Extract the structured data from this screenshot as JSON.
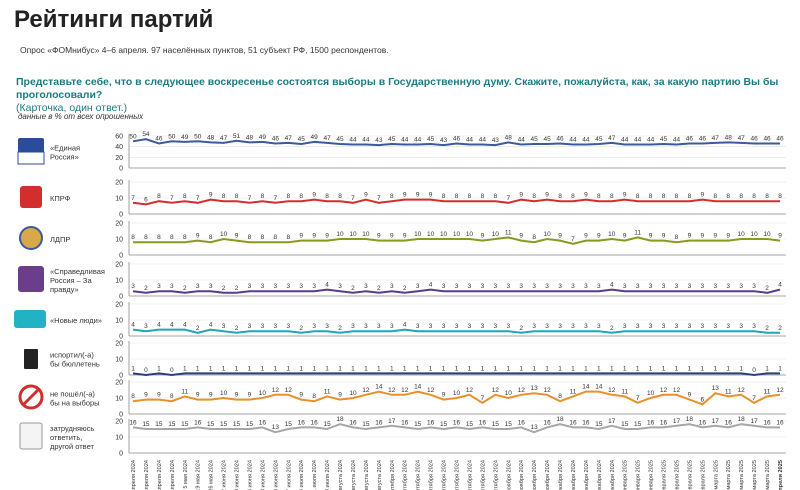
{
  "header": {
    "title": "Рейтинги партий",
    "subtitle": "Опрос «ФОМнибус» 4–6 апреля. 97 населённых пунктов, 51 субъект РФ, 1500 респондентов.",
    "question": "Представьте себе, что в следующее воскресенье состоятся выборы в Государственную думу. Скажите, пожалуйста, как, за какую партию Вы бы проголосовали?",
    "question_note": "(Карточка, один ответ.)",
    "basis": "данные в % от всех опрошенных"
  },
  "chart_data": {
    "type": "line",
    "title": "Рейтинги партий",
    "x": [
      "7 апреля 2024",
      "14 апреля 2024",
      "21 апреля 2024",
      "28 апреля 2024",
      "5 мая 2024",
      "19 мая 2024",
      "26 мая 2024",
      "2 июня 2024",
      "9 июня 2024",
      "16 июня 2024",
      "23 июня 2024",
      "30 июня 2024",
      "7 июля 2024",
      "14 июля 2024",
      "21 июля 2024",
      "28 июля 2024",
      "4 августа 2024",
      "11 августа 2024",
      "18 августа 2024",
      "25 августа 2024",
      "1 сентября 2024",
      "8 сентября 2024",
      "15 сентября 2024",
      "22 сентября 2024",
      "29 сентября 2024",
      "6 октября 2024",
      "13 октября 2024",
      "20 октября 2024",
      "27 октября 2024",
      "3 ноября 2024",
      "10 ноября 2024",
      "17 ноября 2024",
      "24 ноября 2024",
      "1 декабря 2024",
      "8 декабря 2024",
      "15 декабря 2024",
      "22 декабря 2024",
      "29 декабря 2024",
      "12 января 2025",
      "19 января 2025",
      "26 января 2025",
      "2 февраля 2025",
      "9 февраля 2025",
      "16 февраля 2025",
      "23 февраля 2025",
      "2 марта 2025",
      "9 марта 2025",
      "16 марта 2025",
      "23 марта 2025",
      "30 марта 2025",
      "6 апреля 2025"
    ],
    "y_axis_ticks": [
      0,
      20,
      40,
      60
    ],
    "series": [
      {
        "name": "«Единая Россия»",
        "color": "#3a5a9c",
        "ylim": [
          0,
          60
        ],
        "ticks": [
          0,
          20,
          40,
          60
        ],
        "values": [
          50,
          54,
          46,
          50,
          49,
          50,
          48,
          47,
          51,
          48,
          49,
          46,
          47,
          45,
          49,
          47,
          45,
          44,
          44,
          43,
          45,
          44,
          44,
          45,
          43,
          46,
          44,
          44,
          43,
          48,
          44,
          45,
          45,
          46,
          44,
          44,
          45,
          47,
          44,
          44,
          44,
          45,
          44,
          46,
          46,
          47,
          48,
          47,
          46,
          46,
          46
        ]
      },
      {
        "name": "КПРФ",
        "color": "#d42d2d",
        "ylim": [
          0,
          20
        ],
        "ticks": [
          0,
          10,
          20
        ],
        "values": [
          7,
          6,
          8,
          7,
          8,
          7,
          9,
          8,
          8,
          7,
          8,
          7,
          8,
          8,
          9,
          8,
          8,
          7,
          9,
          7,
          8,
          9,
          9,
          9,
          8,
          8,
          8,
          8,
          8,
          7,
          9,
          8,
          9,
          8,
          8,
          9,
          8,
          8,
          9,
          8,
          8,
          8,
          8,
          8,
          9,
          8,
          8,
          8,
          8,
          8,
          8
        ]
      },
      {
        "name": "ЛДПР",
        "color": "#8a9a1f",
        "ylim": [
          0,
          20
        ],
        "ticks": [
          0,
          10,
          20
        ],
        "values": [
          8,
          8,
          8,
          8,
          8,
          9,
          8,
          10,
          9,
          8,
          8,
          8,
          8,
          9,
          9,
          9,
          10,
          10,
          10,
          9,
          9,
          9,
          10,
          10,
          10,
          10,
          10,
          9,
          10,
          11,
          9,
          8,
          10,
          9,
          7,
          9,
          9,
          10,
          9,
          11,
          9,
          9,
          8,
          9,
          9,
          9,
          9,
          10,
          10,
          10,
          9
        ]
      },
      {
        "name": "«Справедливая Россия – За правду»",
        "color": "#5a3a8a",
        "ylim": [
          0,
          20
        ],
        "ticks": [
          0,
          10,
          20
        ],
        "values": [
          3,
          2,
          3,
          3,
          2,
          3,
          3,
          2,
          2,
          3,
          3,
          3,
          3,
          3,
          3,
          4,
          3,
          2,
          3,
          2,
          3,
          2,
          3,
          4,
          3,
          3,
          3,
          3,
          3,
          3,
          3,
          3,
          3,
          3,
          3,
          3,
          3,
          4,
          3,
          3,
          3,
          3,
          3,
          3,
          3,
          3,
          3,
          3,
          3,
          2,
          4
        ]
      },
      {
        "name": "«Новые люди»",
        "color": "#1fa5b7",
        "ylim": [
          0,
          20
        ],
        "ticks": [
          0,
          10,
          20
        ],
        "values": [
          4,
          3,
          4,
          4,
          4,
          2,
          4,
          3,
          2,
          3,
          3,
          3,
          3,
          2,
          3,
          3,
          2,
          3,
          3,
          3,
          3,
          4,
          3,
          3,
          3,
          3,
          3,
          3,
          3,
          3,
          2,
          3,
          3,
          3,
          3,
          3,
          3,
          2,
          3,
          3,
          3,
          3,
          3,
          3,
          3,
          3,
          3,
          3,
          3,
          2,
          2
        ]
      },
      {
        "name": "испортил(-а) бы бюллетень",
        "color": "#2f3e78",
        "ylim": [
          0,
          20
        ],
        "ticks": [
          0,
          10,
          20
        ],
        "values": [
          1,
          0,
          1,
          0,
          1,
          1,
          1,
          1,
          1,
          1,
          1,
          1,
          1,
          1,
          1,
          1,
          1,
          1,
          1,
          1,
          1,
          1,
          1,
          1,
          1,
          1,
          1,
          1,
          1,
          1,
          1,
          1,
          1,
          1,
          1,
          1,
          1,
          1,
          1,
          1,
          1,
          1,
          1,
          1,
          1,
          1,
          1,
          1,
          0,
          1,
          1
        ]
      },
      {
        "name": "не пошёл(-а) бы на выборы",
        "color": "#e8902a",
        "ylim": [
          0,
          20
        ],
        "ticks": [
          0,
          10,
          20
        ],
        "values": [
          8,
          9,
          9,
          8,
          11,
          9,
          9,
          10,
          9,
          9,
          10,
          12,
          12,
          9,
          8,
          11,
          9,
          10,
          12,
          14,
          12,
          12,
          14,
          12,
          9,
          10,
          12,
          7,
          12,
          10,
          12,
          13,
          12,
          8,
          11,
          14,
          14,
          12,
          11,
          7,
          10,
          12,
          12,
          9,
          6,
          13,
          11,
          12,
          7,
          11,
          12
        ]
      },
      {
        "name": "затрудняюсь ответить, другой ответ",
        "color": "#a7a7ab",
        "ylim": [
          0,
          20
        ],
        "ticks": [
          0,
          10,
          20
        ],
        "values": [
          16,
          15,
          15,
          15,
          15,
          16,
          15,
          15,
          15,
          15,
          16,
          13,
          15,
          16,
          16,
          15,
          18,
          16,
          15,
          16,
          17,
          16,
          15,
          16,
          15,
          16,
          15,
          16,
          15,
          15,
          16,
          13,
          16,
          18,
          16,
          16,
          15,
          17,
          15,
          15,
          16,
          16,
          17,
          18,
          16,
          17,
          16,
          18,
          17,
          16,
          16
        ]
      }
    ]
  }
}
